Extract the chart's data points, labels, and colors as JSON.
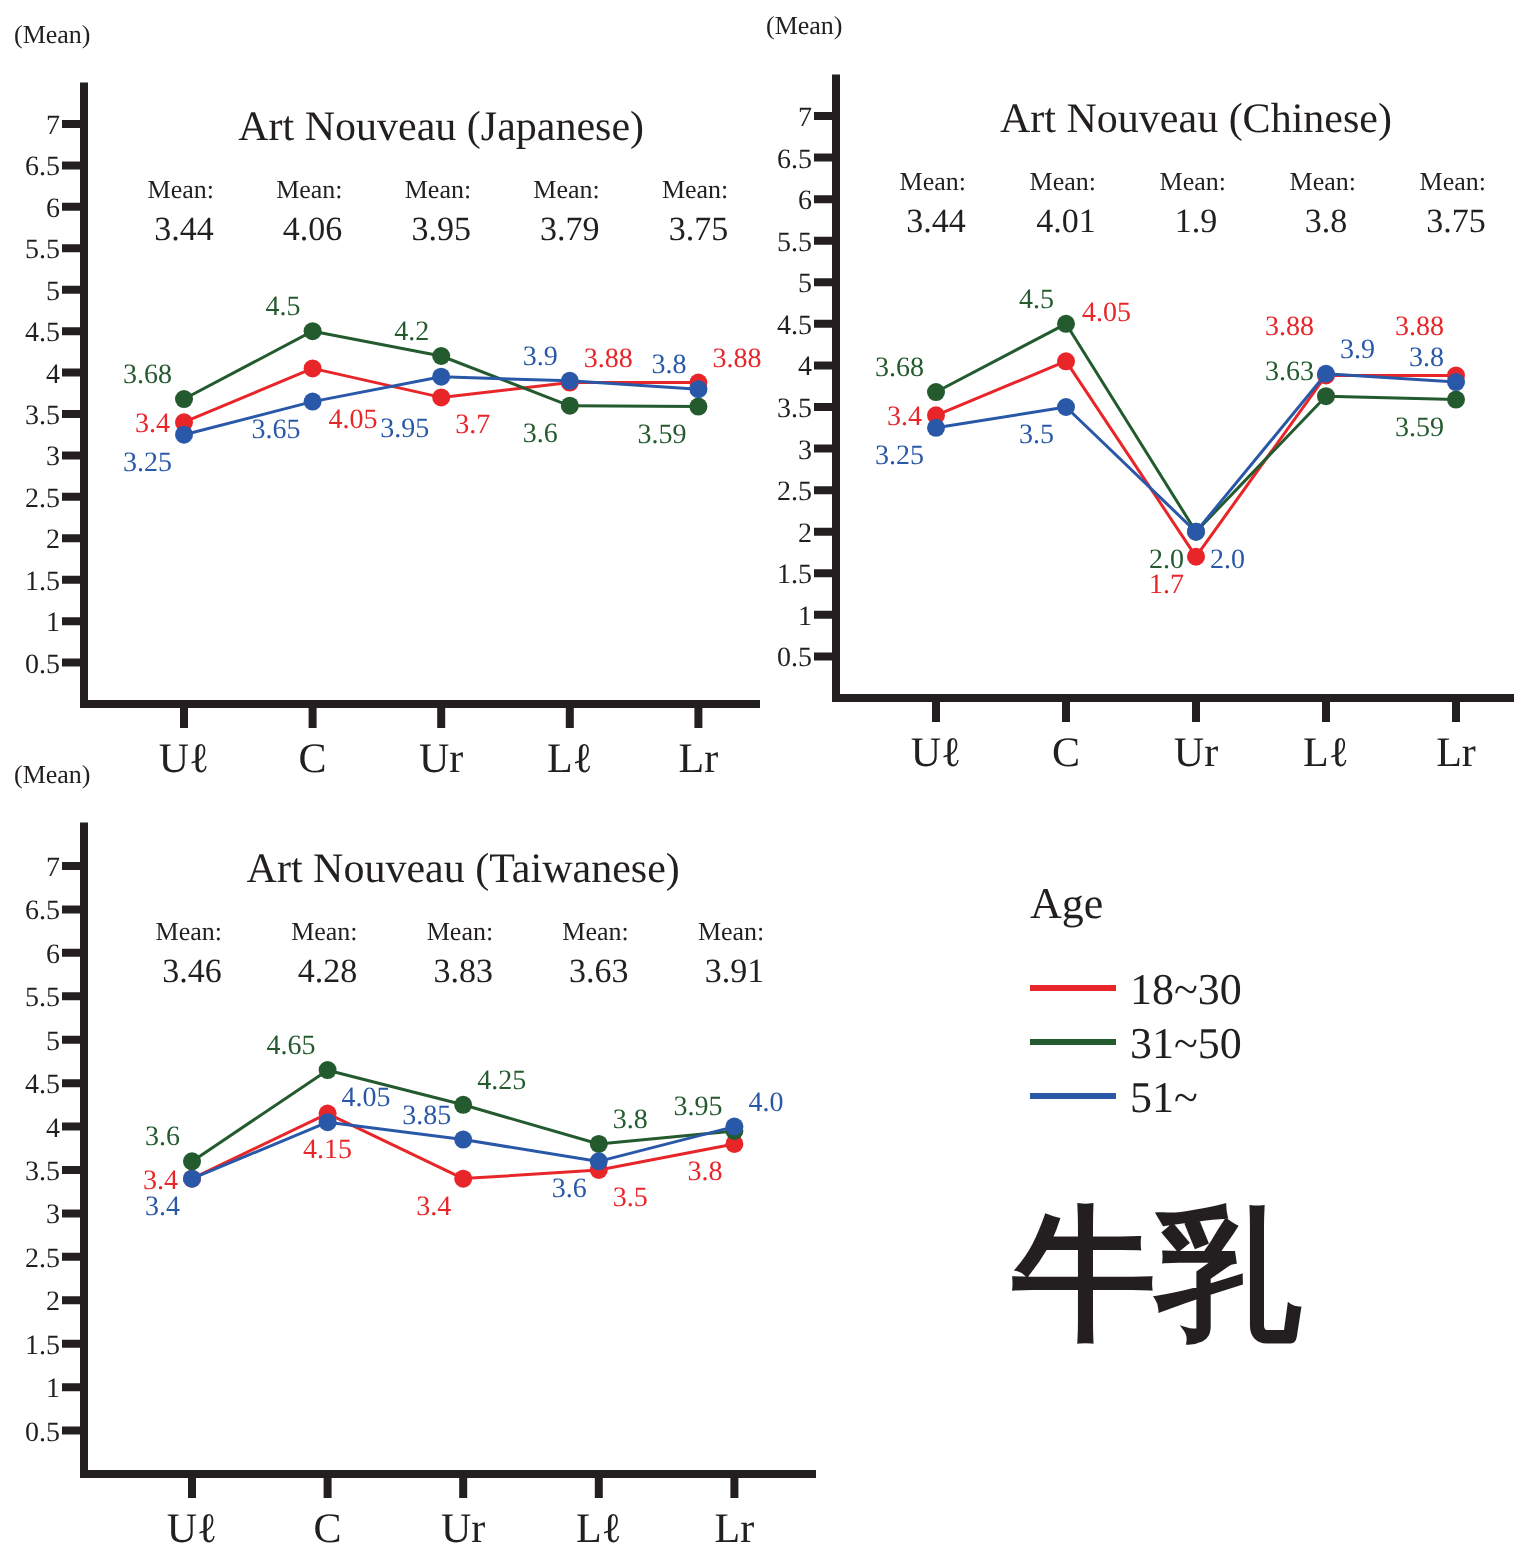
{
  "chart_data": [
    {
      "type": "line",
      "title": "Art Nouveau (Japanese)",
      "ylabel": "(Mean)",
      "categories": [
        "Uℓ",
        "C",
        "Ur",
        "Lℓ",
        "Lr"
      ],
      "ylim": [
        0,
        7.5
      ],
      "yticks": [
        0.5,
        1,
        1.5,
        2,
        2.5,
        3,
        3.5,
        4,
        4.5,
        5,
        5.5,
        6,
        6.5,
        7
      ],
      "marker": "circle",
      "grid": false,
      "legend": false,
      "annotations": [
        "Mean: 3.44",
        "Mean: 4.06",
        "Mean: 3.95",
        "Mean: 3.79",
        "Mean: 3.75"
      ],
      "series": [
        {
          "color": "#e8262a",
          "values": [
            3.4,
            4.05,
            3.7,
            3.88,
            3.88
          ],
          "value_labels": [
            "3.4",
            "4.05",
            "3.7",
            "3.88",
            "3.88"
          ]
        },
        {
          "color": "#235a2e",
          "values": [
            3.68,
            4.5,
            4.2,
            3.6,
            3.59
          ],
          "value_labels": [
            "3.68",
            "4.5",
            "4.2",
            "3.6",
            "3.59"
          ]
        },
        {
          "color": "#2a58a8",
          "values": [
            3.25,
            3.65,
            3.95,
            3.9,
            3.8
          ],
          "value_labels": [
            "3.25",
            "3.65",
            "3.95",
            "3.9",
            "3.8"
          ]
        }
      ]
    },
    {
      "type": "line",
      "title": "Art Nouveau (Chinese)",
      "ylabel": "(Mean)",
      "categories": [
        "Uℓ",
        "C",
        "Ur",
        "Lℓ",
        "Lr"
      ],
      "ylim": [
        0,
        7.5
      ],
      "yticks": [
        0.5,
        1,
        1.5,
        2,
        2.5,
        3,
        3.5,
        4,
        4.5,
        5,
        5.5,
        6,
        6.5,
        7
      ],
      "marker": "circle",
      "grid": false,
      "legend": false,
      "annotations": [
        "Mean: 3.44",
        "Mean: 4.01",
        "Mean: 1.9",
        "Mean: 3.8",
        "Mean: 3.75"
      ],
      "series": [
        {
          "color": "#e8262a",
          "values": [
            3.4,
            4.05,
            1.7,
            3.88,
            3.88
          ],
          "value_labels": [
            "3.4",
            "4.05",
            "1.7",
            "3.88",
            "3.88"
          ]
        },
        {
          "color": "#235a2e",
          "values": [
            3.68,
            4.5,
            2.0,
            3.63,
            3.59
          ],
          "value_labels": [
            "3.68",
            "4.5",
            "2.0",
            "3.63",
            "3.59"
          ]
        },
        {
          "color": "#2a58a8",
          "values": [
            3.25,
            3.5,
            2.0,
            3.9,
            3.8
          ],
          "value_labels": [
            "3.25",
            "3.5",
            "2.0",
            "3.9",
            "3.8"
          ]
        }
      ]
    },
    {
      "type": "line",
      "title": "Art Nouveau (Taiwanese)",
      "ylabel": "(Mean)",
      "legend_title": "Age",
      "categories": [
        "Uℓ",
        "C",
        "Ur",
        "Lℓ",
        "Lr"
      ],
      "ylim": [
        0,
        7.5
      ],
      "yticks": [
        0.5,
        1,
        1.5,
        2,
        2.5,
        3,
        3.5,
        4,
        4.5,
        5,
        5.5,
        6,
        6.5,
        7
      ],
      "marker": "circle",
      "grid": false,
      "legend": "right",
      "annotations": [
        "Mean: 3.46",
        "Mean: 4.28",
        "Mean: 3.83",
        "Mean: 3.63",
        "Mean: 3.91"
      ],
      "series": [
        {
          "name": "18~30",
          "color": "#e8262a",
          "values": [
            3.4,
            4.15,
            3.4,
            3.5,
            3.8
          ],
          "value_labels": [
            "3.4",
            "4.15",
            "3.4",
            "3.5",
            "3.8"
          ]
        },
        {
          "name": "31~50",
          "color": "#235a2e",
          "values": [
            3.6,
            4.65,
            4.25,
            3.8,
            3.95
          ],
          "value_labels": [
            "3.6",
            "4.65",
            "4.25",
            "3.8",
            "3.95"
          ]
        },
        {
          "name": "51~",
          "color": "#2a58a8",
          "values": [
            3.4,
            4.05,
            3.85,
            3.6,
            4.0
          ],
          "value_labels": [
            "3.4",
            "4.05",
            "3.85",
            "3.6",
            "4.0"
          ]
        }
      ]
    },
    {
      "type": "other",
      "title": "牛乳"
    }
  ]
}
